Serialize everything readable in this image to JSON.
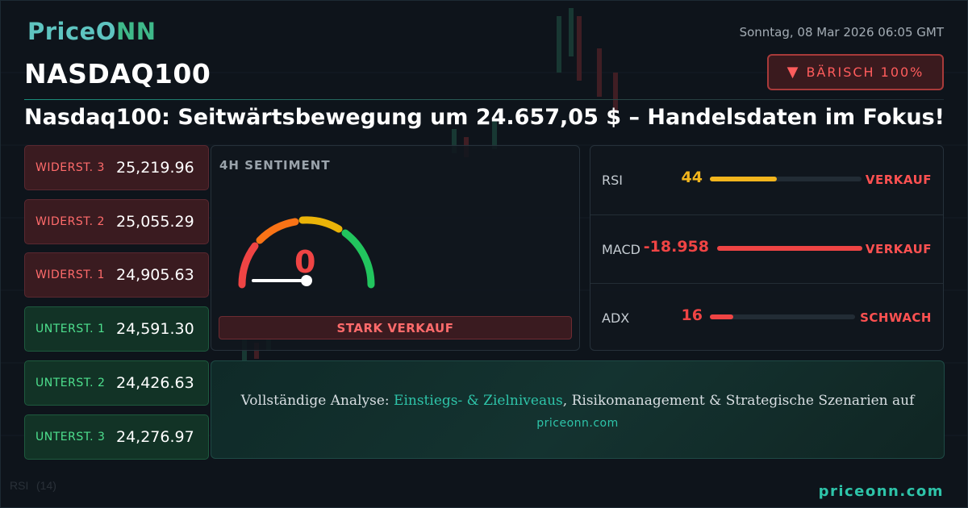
{
  "brand": {
    "logo_main": "PriceO",
    "logo_accent": "NN"
  },
  "datetime": "Sonntag, 08 Mar 2026 06:05 GMT",
  "symbol": "NASDAQ100",
  "badge": {
    "icon": "triangle-down-icon",
    "label": "BÄRISCH 100%"
  },
  "headline": "Nasdaq100: Seitwärtsbewegung um 24.657,05 $ – Handelsdaten im Fokus!",
  "levels": [
    {
      "name": "WIDERST. 3",
      "value": "25,219.96",
      "type": "resistance"
    },
    {
      "name": "WIDERST. 2",
      "value": "25,055.29",
      "type": "resistance"
    },
    {
      "name": "WIDERST. 1",
      "value": "24,905.63",
      "type": "resistance"
    },
    {
      "name": "UNTERST. 1",
      "value": "24,591.30",
      "type": "support"
    },
    {
      "name": "UNTERST. 2",
      "value": "24,426.63",
      "type": "support"
    },
    {
      "name": "UNTERST. 3",
      "value": "24,276.97",
      "type": "support"
    }
  ],
  "sentiment": {
    "title": "4H SENTIMENT",
    "value": "0",
    "gauge_level": 0.0,
    "label": "STARK VERKAUF"
  },
  "indicators": [
    {
      "name": "RSI",
      "value": "44",
      "fill": 0.44,
      "color": "#f2b51d",
      "signal": "VERKAUF"
    },
    {
      "name": "MACD",
      "value": "-18.958",
      "fill": 1.0,
      "color": "#ef4444",
      "signal": "VERKAUF"
    },
    {
      "name": "ADX",
      "value": "16",
      "fill": 0.16,
      "color": "#ef4444",
      "signal": "SCHWACH"
    }
  ],
  "cta": {
    "prefix": "Vollständige Analyse: ",
    "highlight": "Einstiegs- & Zielniveaus",
    "suffix": ", Risikomanagement & Strategische Szenarien auf",
    "url": "priceonn.com"
  },
  "footer_url": "priceonn.com",
  "background": {
    "label_rsi": "RSI",
    "label_rsi_period": "(14)"
  },
  "colors": {
    "bearish": "#ef4444",
    "bullish": "#4ee08e",
    "accent": "#2ec4a9",
    "neutral": "#f2b51d"
  }
}
